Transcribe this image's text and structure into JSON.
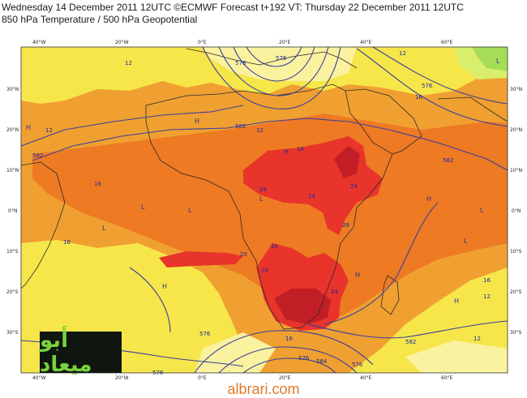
{
  "header": {
    "line1": "Wednesday 14 December 2011 12UTC ©ECMWF Forecast t+192 VT: Thursday 22 December 2011 12UTC",
    "line2": "850 hPa Temperature / 500 hPa Geopotential"
  },
  "axes": {
    "top_lon": [
      "40°W",
      "20°W",
      "0°E",
      "20°E",
      "40°E",
      "60°E"
    ],
    "bottom_lon": [
      "40°W",
      "20°W",
      "0°E",
      "20°E",
      "40°E",
      "60°E"
    ],
    "left_lat": [
      "30°N",
      "20°N",
      "10°N",
      "0°N",
      "10°S",
      "20°S",
      "30°S"
    ],
    "right_lat": [
      "30°N",
      "20°N",
      "10°N",
      "0°N",
      "10°S",
      "20°S",
      "30°S"
    ]
  },
  "temperature_labels": [
    "12",
    "12",
    "12",
    "16",
    "16",
    "16",
    "20",
    "24",
    "24",
    "24",
    "24",
    "28",
    "16",
    "12",
    "12",
    "12",
    "16",
    "16",
    "20",
    "24"
  ],
  "contour_labels": [
    "582",
    "582",
    "576",
    "576",
    "582",
    "582",
    "576",
    "564",
    "576",
    "576",
    "576",
    "576"
  ],
  "pressure_centers": [
    "H",
    "H",
    "H",
    "L",
    "L",
    "L",
    "H",
    "L",
    "H",
    "L",
    "H",
    "L",
    "H",
    "L"
  ],
  "logo_text": "أبو ميعاد",
  "watermark": "albrari.com",
  "colors": {
    "map_yellow": "#f6e64a",
    "map_orange": "#f2a032",
    "map_deep_orange": "#ee7a24",
    "map_red": "#e8342a",
    "map_dark_red": "#c21e26",
    "contour": "#3a3f9c",
    "coast": "#2a2a2a"
  }
}
